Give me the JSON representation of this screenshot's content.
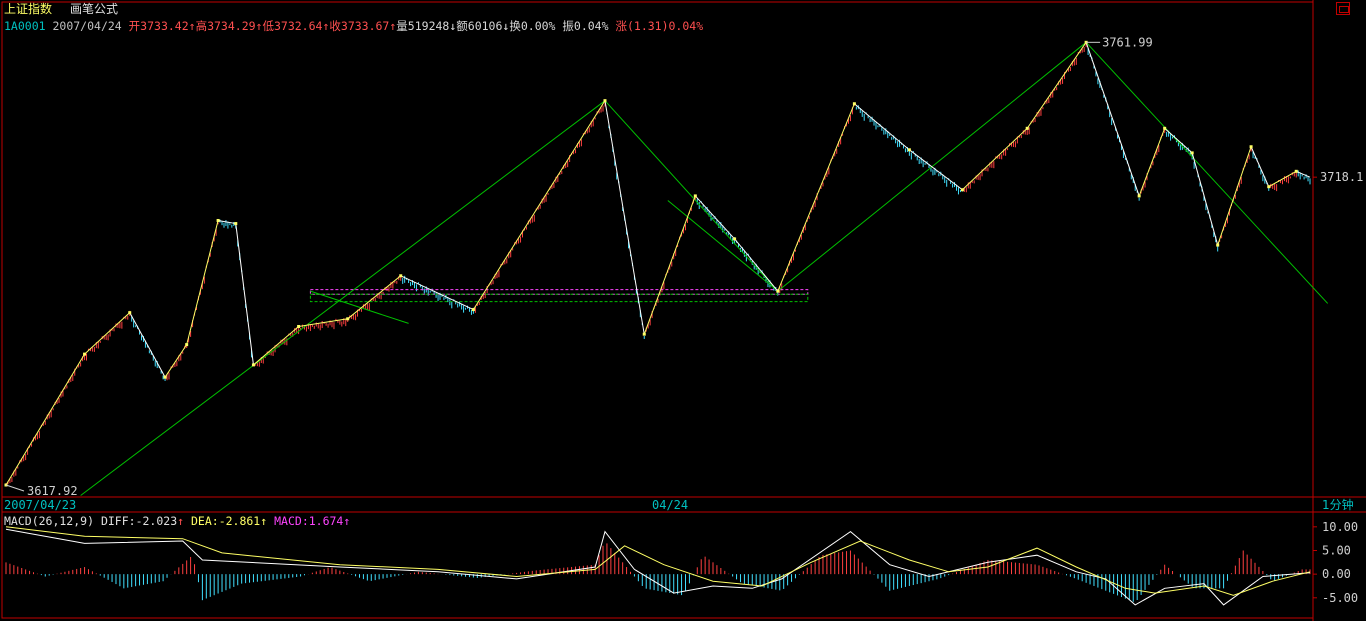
{
  "header": {
    "title": "上证指数",
    "formula": "画笔公式",
    "code": "1A0001",
    "date": "2007/04/24",
    "open": "开3733.42",
    "high": "高3734.29",
    "low": "低3732.64",
    "close": "收3733.67",
    "volume": "量519248",
    "amount": "额60106",
    "turnover": "换0.00%",
    "amplitude": "振0.04%",
    "change": "涨(1.31)0.04%"
  },
  "axis": {
    "date_left": "2007/04/23",
    "date_mid": "04/24",
    "period": "1分钟",
    "price_label": "3718.1",
    "high_mark": "3761.99",
    "low_mark": "3617.92"
  },
  "macd_panel": {
    "name": "MACD(26,12,9)",
    "diff": "DIFF:-2.023",
    "dea": "DEA:-2.861",
    "macd": "MACD:1.674",
    "ticks": [
      "10.00",
      "5.00",
      "0.00",
      "-5.00"
    ]
  },
  "colors": {
    "up": "#ff4040",
    "down": "#40e0ff",
    "stroke_up": "#ffff66",
    "stroke_down": "#ffffff",
    "trend": "#00c000",
    "frame": "#c00000"
  },
  "chart_data": [
    {
      "type": "line",
      "title": "上证指数 画笔公式",
      "period": "1分钟",
      "price_range": [
        3614,
        3766
      ],
      "price_ticks": [
        3718.1
      ],
      "annotations": [
        "3761.99",
        "3617.92"
      ],
      "stroke_pivots": [
        {
          "seq": 0,
          "price": 3617.9
        },
        {
          "seq": 40,
          "price": 3660.5
        },
        {
          "seq": 63,
          "price": 3674.0
        },
        {
          "seq": 81,
          "price": 3653.0
        },
        {
          "seq": 92,
          "price": 3663.6
        },
        {
          "seq": 108,
          "price": 3704.0
        },
        {
          "seq": 117,
          "price": 3703.0
        },
        {
          "seq": 126,
          "price": 3657.0
        },
        {
          "seq": 149,
          "price": 3669.5
        },
        {
          "seq": 174,
          "price": 3672.0
        },
        {
          "seq": 201,
          "price": 3686.0
        },
        {
          "seq": 238,
          "price": 3675.0
        },
        {
          "seq": 305,
          "price": 3743.0
        },
        {
          "seq": 325,
          "price": 3667.0
        },
        {
          "seq": 351,
          "price": 3712.0
        },
        {
          "seq": 371,
          "price": 3698.0
        },
        {
          "seq": 393,
          "price": 3681.0
        },
        {
          "seq": 432,
          "price": 3742.0
        },
        {
          "seq": 460,
          "price": 3727.0
        },
        {
          "seq": 487,
          "price": 3714.0
        },
        {
          "seq": 520,
          "price": 3734.0
        },
        {
          "seq": 550,
          "price": 3761.99
        },
        {
          "seq": 577,
          "price": 3712.0
        },
        {
          "seq": 590,
          "price": 3734.0
        },
        {
          "seq": 604,
          "price": 3726.0
        },
        {
          "seq": 617,
          "price": 3696.0
        },
        {
          "seq": 634,
          "price": 3728.0
        },
        {
          "seq": 643,
          "price": 3715.0
        },
        {
          "seq": 657,
          "price": 3720.0
        },
        {
          "seq": 664,
          "price": 3718.1
        }
      ],
      "trend_lines": [
        {
          "from": {
            "seq": 38,
            "price": 3614.5
          },
          "to": {
            "seq": 305,
            "price": 3743.0
          }
        },
        {
          "from": {
            "seq": 305,
            "price": 3743.0
          },
          "to": {
            "seq": 393,
            "price": 3681.0
          }
        },
        {
          "from": {
            "seq": 393,
            "price": 3681.0
          },
          "to": {
            "seq": 550,
            "price": 3761.99
          }
        },
        {
          "from": {
            "seq": 550,
            "price": 3761.99
          },
          "to": {
            "seq": 673,
            "price": 3677.0
          }
        },
        {
          "from": {
            "seq": 155,
            "price": 3681.0
          },
          "to": {
            "seq": 205,
            "price": 3670.5
          }
        },
        {
          "from": {
            "seq": 337,
            "price": 3710.5
          },
          "to": {
            "seq": 393,
            "price": 3681.0
          }
        }
      ],
      "bands": [
        {
          "price_top": 3681.5,
          "price_bottom": 3680.0,
          "color": "magenta"
        },
        {
          "price_top": 3680.0,
          "price_bottom": 3677.6,
          "color": "green"
        }
      ]
    },
    {
      "type": "line",
      "title": "MACD(26,12,9)",
      "ylim": [
        -8,
        12.5
      ],
      "yticks": [
        10,
        5,
        0,
        -5
      ],
      "series": [
        {
          "name": "DIFF",
          "points": [
            [
              0,
              9.5
            ],
            [
              40,
              6.5
            ],
            [
              90,
              7.0
            ],
            [
              100,
              3.0
            ],
            [
              170,
              1.5
            ],
            [
              220,
              0.5
            ],
            [
              260,
              -1.0
            ],
            [
              300,
              1.5
            ],
            [
              305,
              9.0
            ],
            [
              320,
              1.0
            ],
            [
              340,
              -4.0
            ],
            [
              360,
              -2.5
            ],
            [
              380,
              -3.0
            ],
            [
              395,
              -1.0
            ],
            [
              430,
              9.0
            ],
            [
              450,
              2.0
            ],
            [
              470,
              -0.5
            ],
            [
              500,
              2.5
            ],
            [
              525,
              4.0
            ],
            [
              545,
              0.5
            ],
            [
              560,
              -1.0
            ],
            [
              575,
              -6.5
            ],
            [
              590,
              -3.0
            ],
            [
              610,
              -2.0
            ],
            [
              620,
              -6.5
            ],
            [
              640,
              -0.5
            ],
            [
              664,
              0.3
            ]
          ]
        },
        {
          "name": "DEA",
          "points": [
            [
              0,
              10.0
            ],
            [
              40,
              8.0
            ],
            [
              90,
              7.5
            ],
            [
              110,
              4.5
            ],
            [
              170,
              2.0
            ],
            [
              220,
              1.0
            ],
            [
              260,
              -0.5
            ],
            [
              300,
              1.0
            ],
            [
              315,
              6.0
            ],
            [
              335,
              2.0
            ],
            [
              360,
              -1.5
            ],
            [
              385,
              -2.5
            ],
            [
              410,
              2.5
            ],
            [
              435,
              7.0
            ],
            [
              460,
              3.0
            ],
            [
              480,
              0.5
            ],
            [
              500,
              1.5
            ],
            [
              525,
              5.5
            ],
            [
              545,
              1.5
            ],
            [
              570,
              -3.0
            ],
            [
              585,
              -4.0
            ],
            [
              610,
              -2.5
            ],
            [
              625,
              -4.5
            ],
            [
              645,
              -1.5
            ],
            [
              664,
              0.5
            ]
          ]
        }
      ],
      "histogram": [
        {
          "seq": 0,
          "value": 2.5
        },
        {
          "seq": 20,
          "value": -0.5
        },
        {
          "seq": 40,
          "value": 1.5
        },
        {
          "seq": 60,
          "value": -3.0
        },
        {
          "seq": 80,
          "value": -1.5
        },
        {
          "seq": 95,
          "value": 4.0
        },
        {
          "seq": 100,
          "value": -5.5
        },
        {
          "seq": 120,
          "value": -2.0
        },
        {
          "seq": 150,
          "value": -0.5
        },
        {
          "seq": 165,
          "value": 1.5
        },
        {
          "seq": 185,
          "value": -1.5
        },
        {
          "seq": 210,
          "value": 0.5
        },
        {
          "seq": 240,
          "value": -0.8
        },
        {
          "seq": 270,
          "value": 0.8
        },
        {
          "seq": 300,
          "value": 2.0
        },
        {
          "seq": 305,
          "value": 7.0
        },
        {
          "seq": 325,
          "value": -3.0
        },
        {
          "seq": 345,
          "value": -4.5
        },
        {
          "seq": 355,
          "value": 4.0
        },
        {
          "seq": 375,
          "value": -2.0
        },
        {
          "seq": 395,
          "value": -3.5
        },
        {
          "seq": 415,
          "value": 4.0
        },
        {
          "seq": 430,
          "value": 5.0
        },
        {
          "seq": 450,
          "value": -3.5
        },
        {
          "seq": 475,
          "value": -1.0
        },
        {
          "seq": 500,
          "value": 3.0
        },
        {
          "seq": 525,
          "value": 2.0
        },
        {
          "seq": 545,
          "value": -1.0
        },
        {
          "seq": 560,
          "value": -3.5
        },
        {
          "seq": 575,
          "value": -6.0
        },
        {
          "seq": 590,
          "value": 2.0
        },
        {
          "seq": 605,
          "value": -3.0
        },
        {
          "seq": 620,
          "value": -3.0
        },
        {
          "seq": 630,
          "value": 5.0
        },
        {
          "seq": 645,
          "value": -1.5
        },
        {
          "seq": 660,
          "value": 1.0
        }
      ]
    }
  ]
}
